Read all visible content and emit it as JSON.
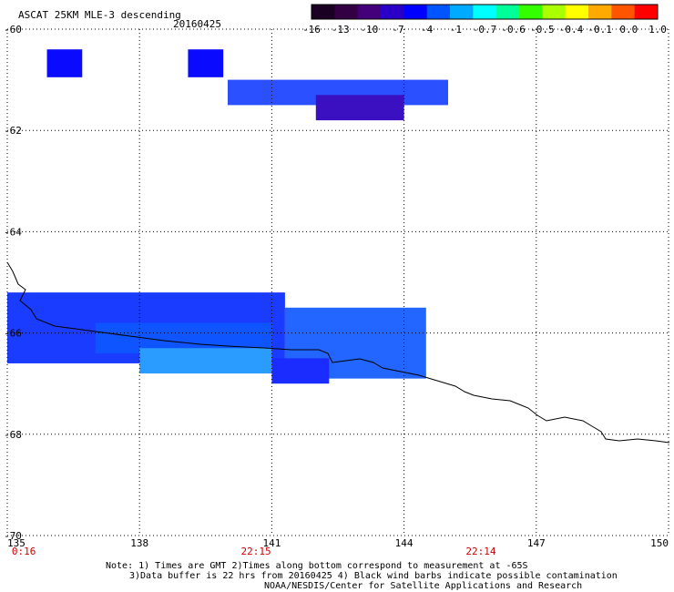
{
  "header": {
    "title": "ASCAT 25KM MLE-3 descending",
    "date": "20160425"
  },
  "colorbar": {
    "labels": [
      "-16",
      "-13",
      "-10",
      "-7",
      "-4",
      "-1",
      "-0.7",
      "-0.6",
      "-0.5",
      "-0.4",
      "-0.1",
      "0.0",
      "1.0"
    ],
    "colors": [
      "#1a0022",
      "#330044",
      "#44007a",
      "#2a00c8",
      "#0000ff",
      "#0055ff",
      "#00aaff",
      "#00ffff",
      "#00ff99",
      "#33ff00",
      "#aaff00",
      "#ffff00",
      "#ffaa00",
      "#ff5500",
      "#ff0000"
    ]
  },
  "map": {
    "lon_range": [
      135,
      150
    ],
    "lat_range": [
      -70,
      -60
    ],
    "lon_ticks": [
      "135",
      "138",
      "141",
      "144",
      "147",
      "150"
    ],
    "lat_ticks": [
      "-60",
      "-62",
      "-64",
      "-66",
      "-68",
      "-70"
    ],
    "time_labels": [
      {
        "text": "0:16",
        "lon": 135.1
      },
      {
        "text": "22:15",
        "lon": 140.3
      },
      {
        "text": "22:14",
        "lon": 145.4
      }
    ],
    "swath_cells": [
      {
        "lon": 135.9,
        "lat": -60.4,
        "w": 0.8,
        "h": 0.55,
        "color": "#0a0aff"
      },
      {
        "lon": 139.1,
        "lat": -60.4,
        "w": 0.8,
        "h": 0.55,
        "color": "#0a0aff"
      },
      {
        "lon": 140.0,
        "lat": -61.0,
        "w": 5.0,
        "h": 0.5,
        "color": "#2a50ff"
      },
      {
        "lon": 142.0,
        "lat": -61.3,
        "w": 2.0,
        "h": 0.5,
        "color": "#3a10c0"
      },
      {
        "lon": 135.0,
        "lat": -65.2,
        "w": 6.3,
        "h": 1.4,
        "color": "#1a3cff"
      },
      {
        "lon": 141.3,
        "lat": -65.5,
        "w": 3.2,
        "h": 1.4,
        "color": "#2266ff"
      },
      {
        "lon": 137.0,
        "lat": -65.8,
        "w": 4.0,
        "h": 0.6,
        "color": "#0f55ff"
      },
      {
        "lon": 138.0,
        "lat": -66.3,
        "w": 3.0,
        "h": 0.5,
        "color": "#2a9cff"
      },
      {
        "lon": 141.0,
        "lat": -66.5,
        "w": 1.3,
        "h": 0.5,
        "color": "#1a2cff"
      }
    ]
  },
  "notes": {
    "line1": "Note: 1) Times are GMT 2)Times along bottom correspond to measurement at -65S",
    "line2": "3)Data buffer is 22 hrs from 20160425 4) Black wind barbs indicate possible contamination",
    "line3": "NOAA/NESDIS/Center for Satellite Applications and Research"
  }
}
